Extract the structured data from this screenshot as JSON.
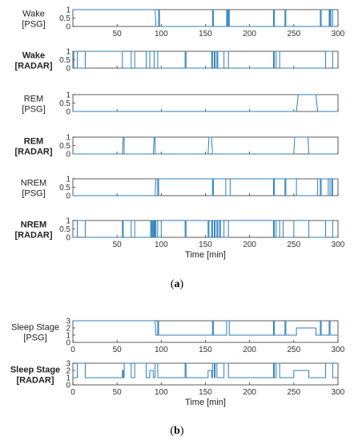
{
  "chart_data": [
    {
      "type": "line",
      "panel": "a",
      "series_label_lines": [
        "Wake",
        "[PSG]"
      ],
      "label_bold": false,
      "ylim": [
        0,
        1
      ],
      "yticks": [
        0,
        0.5,
        1
      ],
      "xlim": [
        0,
        300
      ],
      "xticks": [
        50,
        100,
        150,
        200,
        250,
        300
      ],
      "show_xtick_labels": true,
      "xlabel": "",
      "color": "#2e7fba",
      "x": [
        0,
        93,
        94,
        97,
        97,
        98,
        98,
        99,
        99,
        158,
        158,
        159,
        159,
        174,
        174,
        175,
        175,
        176,
        176,
        177,
        177,
        227,
        227,
        228,
        228,
        240,
        240,
        241,
        241,
        280,
        280,
        281,
        281,
        290,
        290,
        291,
        291,
        292,
        292,
        294,
        294,
        295,
        295,
        300
      ],
      "y": [
        1,
        1,
        0,
        0,
        1,
        1,
        0,
        0,
        0,
        0,
        1,
        1,
        0,
        0,
        1,
        1,
        0,
        0,
        1,
        1,
        0,
        0,
        1,
        1,
        0,
        0,
        1,
        1,
        0,
        0,
        1,
        1,
        0,
        0,
        1,
        1,
        0,
        0,
        1,
        1,
        0,
        0,
        0,
        0
      ]
    },
    {
      "type": "line",
      "panel": "a",
      "series_label_lines": [
        "Wake",
        "[RADAR]"
      ],
      "label_bold": true,
      "ylim": [
        0,
        1
      ],
      "yticks": [
        0,
        0.5,
        1
      ],
      "xlim": [
        0,
        300
      ],
      "xticks": [
        50,
        100,
        150,
        200,
        250,
        300
      ],
      "show_xtick_labels": false,
      "xlabel": "",
      "color": "#2e7fba",
      "x": [
        0,
        1,
        1,
        5,
        5,
        14,
        14,
        56,
        56,
        66,
        66,
        70,
        70,
        83,
        83,
        87,
        87,
        92,
        92,
        96,
        96,
        100,
        100,
        127,
        127,
        128,
        128,
        129,
        129,
        157,
        157,
        158,
        158,
        160,
        160,
        161,
        161,
        163,
        163,
        164,
        164,
        171,
        171,
        176,
        176,
        227,
        227,
        228,
        228,
        230,
        230,
        234,
        234,
        238,
        238,
        286,
        286,
        294,
        294,
        300
      ],
      "y": [
        0,
        0,
        1,
        1,
        0,
        0,
        1,
        1,
        0,
        0,
        1,
        1,
        0,
        0,
        1,
        1,
        0,
        0,
        1,
        1,
        0,
        0,
        0,
        0,
        1,
        1,
        0,
        0,
        0,
        0,
        1,
        1,
        0,
        0,
        1,
        1,
        0,
        0,
        1,
        1,
        0,
        0,
        1,
        1,
        0,
        0,
        1,
        1,
        0,
        0,
        1,
        1,
        0,
        0,
        0,
        0,
        1,
        1,
        0,
        0
      ]
    },
    {
      "type": "line",
      "panel": "a",
      "series_label_lines": [
        "REM",
        "[PSG]"
      ],
      "label_bold": false,
      "ylim": [
        0,
        1
      ],
      "yticks": [
        0,
        0.5,
        1
      ],
      "xlim": [
        0,
        300
      ],
      "xticks": [
        50,
        100,
        150,
        200,
        250,
        300
      ],
      "show_xtick_labels": false,
      "xlabel": "",
      "color": "#2e7fba",
      "x": [
        0,
        253,
        255,
        275,
        277,
        300
      ],
      "y": [
        0,
        0,
        1,
        1,
        0,
        0
      ]
    },
    {
      "type": "line",
      "panel": "a",
      "series_label_lines": [
        "REM",
        "[RADAR]"
      ],
      "label_bold": true,
      "ylim": [
        0,
        1
      ],
      "yticks": [
        0,
        0.5,
        1
      ],
      "xlim": [
        0,
        300
      ],
      "xticks": [
        50,
        100,
        150,
        200,
        250,
        300
      ],
      "show_xtick_labels": false,
      "xlabel": "",
      "color": "#2e7fba",
      "x": [
        0,
        56,
        57,
        58,
        58,
        91,
        92,
        93,
        93,
        153,
        154,
        157,
        158,
        250,
        251,
        266,
        267,
        300
      ],
      "y": [
        0,
        0,
        1,
        1,
        0,
        0,
        1,
        1,
        0,
        0,
        1,
        1,
        0,
        0,
        1,
        1,
        0,
        0
      ]
    },
    {
      "type": "line",
      "panel": "a",
      "series_label_lines": [
        "NREM",
        "[PSG]"
      ],
      "label_bold": false,
      "ylim": [
        0,
        1
      ],
      "yticks": [
        0,
        0.5,
        1
      ],
      "xlim": [
        0,
        300
      ],
      "xticks": [
        50,
        100,
        150,
        200,
        250,
        300
      ],
      "show_xtick_labels": false,
      "xlabel": "",
      "color": "#2e7fba",
      "x": [
        0,
        93,
        94,
        96,
        96,
        97,
        97,
        98,
        98,
        158,
        158,
        159,
        159,
        173,
        173,
        178,
        178,
        227,
        227,
        228,
        228,
        240,
        240,
        241,
        241,
        253,
        253,
        277,
        277,
        280,
        280,
        281,
        281,
        289,
        289,
        291,
        291,
        293,
        293,
        294,
        294,
        300
      ],
      "y": [
        0,
        0,
        1,
        1,
        0,
        0,
        1,
        1,
        1,
        1,
        0,
        0,
        1,
        1,
        0,
        0,
        1,
        1,
        0,
        0,
        1,
        1,
        0,
        0,
        1,
        1,
        0,
        0,
        1,
        1,
        0,
        0,
        1,
        1,
        0,
        0,
        1,
        1,
        0,
        0,
        1,
        1
      ]
    },
    {
      "type": "line",
      "panel": "a",
      "series_label_lines": [
        "NREM",
        "[RADAR]"
      ],
      "label_bold": true,
      "ylim": [
        0,
        1
      ],
      "yticks": [
        0,
        0.5,
        1
      ],
      "xlim": [
        0,
        300
      ],
      "xticks": [
        50,
        100,
        150,
        200,
        250,
        300
      ],
      "show_xtick_labels": true,
      "xlabel": "Time [min]",
      "color": "#2e7fba",
      "x": [
        0,
        5,
        5,
        14,
        14,
        56,
        56,
        57,
        57,
        66,
        66,
        70,
        70,
        88,
        88,
        89,
        89,
        90,
        90,
        91,
        91,
        92,
        92,
        93,
        93,
        94,
        94,
        96,
        96,
        100,
        100,
        127,
        127,
        128,
        128,
        153,
        153,
        154,
        154,
        157,
        157,
        158,
        158,
        160,
        160,
        161,
        161,
        163,
        163,
        164,
        164,
        166,
        166,
        167,
        167,
        171,
        171,
        176,
        176,
        227,
        227,
        228,
        228,
        230,
        230,
        234,
        234,
        238,
        238,
        250,
        250,
        267,
        267,
        286,
        286,
        294,
        294,
        300
      ],
      "y": [
        0,
        0,
        1,
        1,
        0,
        0,
        1,
        1,
        0,
        0,
        1,
        1,
        0,
        0,
        1,
        1,
        0,
        0,
        1,
        1,
        0,
        0,
        1,
        1,
        0,
        0,
        1,
        1,
        0,
        0,
        1,
        1,
        0,
        0,
        1,
        1,
        0,
        0,
        1,
        1,
        0,
        0,
        1,
        1,
        0,
        0,
        1,
        1,
        0,
        0,
        1,
        1,
        0,
        0,
        1,
        1,
        0,
        0,
        1,
        1,
        0,
        0,
        1,
        1,
        0,
        0,
        1,
        1,
        0,
        0,
        1,
        1,
        0,
        0,
        1,
        1,
        0,
        0
      ]
    },
    {
      "type": "line",
      "panel": "b",
      "series_label_lines": [
        "Sleep Stage",
        "[PSG]"
      ],
      "label_bold": false,
      "ylim": [
        0,
        3
      ],
      "yticks": [
        0,
        1,
        2,
        3
      ],
      "xlim": [
        0,
        300
      ],
      "xticks": [
        0,
        50,
        100,
        150,
        200,
        250,
        300
      ],
      "show_xtick_labels": true,
      "xlabel": "",
      "color": "#2e7fba",
      "x": [
        0,
        93,
        94,
        96,
        96,
        97,
        97,
        98,
        98,
        158,
        158,
        159,
        159,
        174,
        174,
        177,
        177,
        227,
        227,
        228,
        228,
        240,
        240,
        241,
        241,
        253,
        253,
        275,
        275,
        280,
        280,
        281,
        281,
        290,
        290,
        291,
        291,
        294,
        294,
        300
      ],
      "y": [
        3,
        3,
        1,
        1,
        3,
        3,
        1,
        1,
        1,
        1,
        3,
        3,
        1,
        1,
        3,
        3,
        1,
        1,
        3,
        3,
        1,
        1,
        3,
        3,
        1,
        1,
        2,
        2,
        1,
        1,
        3,
        3,
        1,
        1,
        3,
        3,
        1,
        1,
        1,
        1
      ]
    },
    {
      "type": "line",
      "panel": "b",
      "series_label_lines": [
        "Sleep Stage",
        "[RADAR]"
      ],
      "label_bold": true,
      "ylim": [
        0,
        3
      ],
      "yticks": [
        0,
        1,
        2,
        3
      ],
      "xlim": [
        0,
        300
      ],
      "xticks": [
        0,
        50,
        100,
        150,
        200,
        250,
        300
      ],
      "show_xtick_labels": true,
      "xlabel": "Time [min]",
      "color": "#2e7fba",
      "x": [
        0,
        5,
        5,
        14,
        14,
        56,
        56,
        57,
        57,
        58,
        58,
        66,
        66,
        70,
        70,
        83,
        83,
        87,
        87,
        91,
        91,
        93,
        93,
        96,
        96,
        100,
        100,
        127,
        127,
        128,
        128,
        153,
        153,
        157,
        157,
        158,
        158,
        160,
        160,
        161,
        161,
        163,
        163,
        164,
        164,
        171,
        171,
        176,
        176,
        227,
        227,
        228,
        228,
        230,
        230,
        234,
        234,
        238,
        238,
        250,
        250,
        267,
        267,
        286,
        286,
        294,
        294,
        300
      ],
      "y": [
        1,
        1,
        3,
        3,
        1,
        1,
        2,
        2,
        1,
        1,
        3,
        3,
        1,
        1,
        3,
        3,
        1,
        1,
        2,
        2,
        1,
        1,
        3,
        3,
        1,
        1,
        1,
        1,
        3,
        3,
        1,
        1,
        2,
        2,
        1,
        1,
        3,
        3,
        1,
        1,
        3,
        3,
        1,
        1,
        1,
        1,
        3,
        3,
        1,
        1,
        3,
        3,
        1,
        1,
        3,
        3,
        1,
        1,
        1,
        1,
        2,
        2,
        1,
        1,
        3,
        3,
        1,
        1
      ]
    }
  ],
  "captions": {
    "a": "(a)",
    "b": "(b)"
  }
}
